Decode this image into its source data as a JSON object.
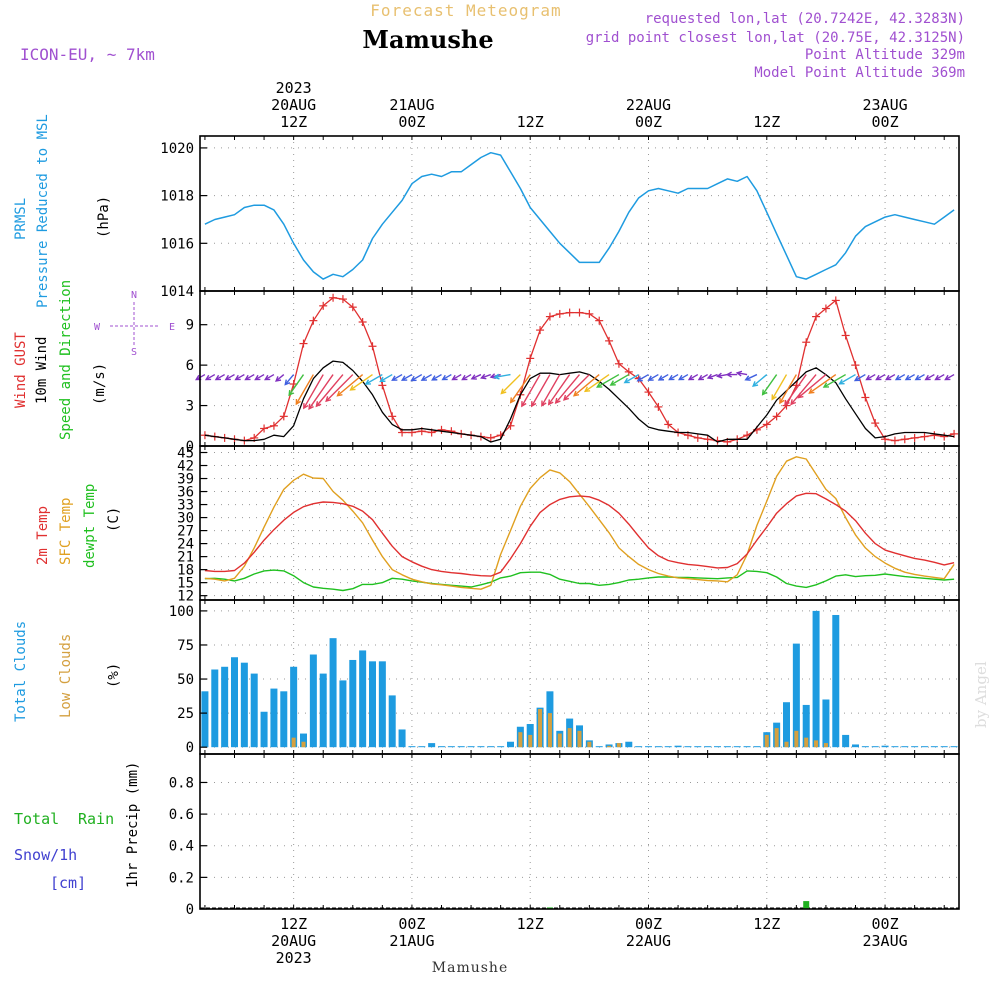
{
  "header": {
    "super_title": "Forecast Meteogram",
    "location": "Mamushe",
    "model": "ICON-EU, ~ 7km",
    "requested": "requested lon,lat (20.7242E, 42.3283N)",
    "gridpoint": "grid point closest lon,lat (20.75E, 42.3125N)",
    "point_alt": "Point Altitude 329m",
    "model_alt": "Model Point Altitude 369m",
    "footer_location": "Mamushe",
    "watermark": "by Angel"
  },
  "time_axis": {
    "start": "2023-08-20T03Z",
    "end": "2023-08-23T06Z",
    "step_hours": 1,
    "top_labels": [
      {
        "t": 9,
        "lines": [
          "2023",
          "20AUG",
          "12Z"
        ]
      },
      {
        "t": 21,
        "lines": [
          "21AUG",
          "00Z"
        ]
      },
      {
        "t": 33,
        "lines": [
          "12Z"
        ]
      },
      {
        "t": 45,
        "lines": [
          "22AUG",
          "00Z"
        ]
      },
      {
        "t": 57,
        "lines": [
          "12Z"
        ]
      },
      {
        "t": 69,
        "lines": [
          "23AUG",
          "00Z"
        ]
      }
    ],
    "bottom_labels": [
      {
        "t": 9,
        "lines": [
          "12Z",
          "20AUG",
          "2023"
        ]
      },
      {
        "t": 21,
        "lines": [
          "00Z",
          "21AUG"
        ]
      },
      {
        "t": 33,
        "lines": [
          "12Z"
        ]
      },
      {
        "t": 45,
        "lines": [
          "00Z",
          "22AUG"
        ]
      },
      {
        "t": 57,
        "lines": [
          "12Z"
        ]
      },
      {
        "t": 69,
        "lines": [
          "00Z",
          "23AUG"
        ]
      }
    ]
  },
  "colors": {
    "pressure": "#1e9be0",
    "gust": "#e03030",
    "wind": "#000000",
    "temp": "#e03030",
    "sfc": "#e0a020",
    "dewpt": "#20c020",
    "total_cloud": "#1e9be0",
    "low_cloud": "#d4a040",
    "rain": "#20b020",
    "snow": "#4040d0",
    "header_purple": "#a050d0",
    "header_orange": "#e8c070",
    "dir_label": "#a050d0"
  },
  "panels": {
    "pressure": {
      "labels": [
        "PRMSL",
        "Pressure Reduced to MSL"
      ],
      "unit": "(hPa)"
    },
    "wind": {
      "labels": [
        "Wind GUST",
        "10m Wind",
        "Speed and Direction"
      ],
      "unit": "(m/s)",
      "dir_marks": [
        "N",
        "S",
        "W",
        "E"
      ]
    },
    "temp": {
      "labels": [
        "2m Temp",
        "SFC Temp",
        "dewpt Temp"
      ],
      "unit": "(C)"
    },
    "cloud": {
      "labels": [
        "Total Clouds",
        "Low Clouds"
      ],
      "unit": "(%)"
    },
    "precip": {
      "labels": [
        "Total",
        "Rain",
        "Snow/1h",
        "[cm]"
      ],
      "unit": "1hr Precip (mm)"
    }
  },
  "chart_data": [
    {
      "type": "line",
      "name": "PRMSL",
      "ylabel": "(hPa)",
      "ylim": [
        1014,
        1020.5
      ],
      "yticks": [
        1014,
        1016,
        1018,
        1020
      ],
      "grid": true,
      "series": [
        {
          "name": "PRMSL",
          "values": [
            1016.8,
            1017.0,
            1017.1,
            1017.2,
            1017.5,
            1017.6,
            1017.6,
            1017.4,
            1016.8,
            1016.0,
            1015.3,
            1014.8,
            1014.5,
            1014.7,
            1014.6,
            1014.9,
            1015.3,
            1016.2,
            1016.8,
            1017.3,
            1017.8,
            1018.5,
            1018.8,
            1018.9,
            1018.8,
            1019.0,
            1019.0,
            1019.3,
            1019.6,
            1019.8,
            1019.7,
            1019.0,
            1018.3,
            1017.5,
            1017.0,
            1016.5,
            1016.0,
            1015.6,
            1015.2,
            1015.2,
            1015.2,
            1015.8,
            1016.5,
            1017.3,
            1017.9,
            1018.2,
            1018.3,
            1018.2,
            1018.1,
            1018.3,
            1018.3,
            1018.3,
            1018.5,
            1018.7,
            1018.6,
            1018.8,
            1018.2,
            1017.3,
            1016.4,
            1015.5,
            1014.6,
            1014.5,
            1014.7,
            1014.9,
            1015.1,
            1015.6,
            1016.3,
            1016.7,
            1016.9,
            1017.1,
            1017.2,
            1017.1,
            1017.0,
            1016.9,
            1016.8,
            1017.1,
            1017.4
          ]
        }
      ]
    },
    {
      "type": "line",
      "name": "Wind",
      "ylabel": "(m/s)",
      "ylim": [
        0,
        11.5
      ],
      "yticks": [
        0,
        3,
        6,
        9
      ],
      "grid": true,
      "series": [
        {
          "name": "Wind GUST",
          "values": [
            0.8,
            0.7,
            0.6,
            0.5,
            0.4,
            0.6,
            1.3,
            1.5,
            2.2,
            4.6,
            7.6,
            9.3,
            10.4,
            11.0,
            10.9,
            10.3,
            9.2,
            7.4,
            4.5,
            2.2,
            1.0,
            1.0,
            1.1,
            1.0,
            1.2,
            1.1,
            0.9,
            0.8,
            0.7,
            0.6,
            0.8,
            1.5,
            3.8,
            6.5,
            8.6,
            9.6,
            9.8,
            9.9,
            9.9,
            9.8,
            9.3,
            7.8,
            6.1,
            5.5,
            5.0,
            4.0,
            2.9,
            1.6,
            1.0,
            0.8,
            0.6,
            0.5,
            0.4,
            0.3,
            0.5,
            0.8,
            1.2,
            1.6,
            2.2,
            3.0,
            4.5,
            7.7,
            9.6,
            10.2,
            10.8,
            8.2,
            6.0,
            3.6,
            1.7,
            0.5,
            0.4,
            0.5,
            0.6,
            0.7,
            0.8,
            0.7,
            0.9
          ]
        },
        {
          "name": "10m Wind",
          "values": [
            0.8,
            0.7,
            0.6,
            0.5,
            0.4,
            0.4,
            0.5,
            0.8,
            0.7,
            1.5,
            3.5,
            5.0,
            5.8,
            6.3,
            6.2,
            5.6,
            4.8,
            3.8,
            2.5,
            1.6,
            1.2,
            1.2,
            1.3,
            1.2,
            1.1,
            1.0,
            0.9,
            0.8,
            0.7,
            0.3,
            0.5,
            2.0,
            3.8,
            5.0,
            5.4,
            5.4,
            5.3,
            5.4,
            5.5,
            5.3,
            4.8,
            4.2,
            3.5,
            2.8,
            2.0,
            1.4,
            1.2,
            1.1,
            1.0,
            1.0,
            0.9,
            0.8,
            0.3,
            0.5,
            0.5,
            0.5,
            1.4,
            2.3,
            3.4,
            4.1,
            4.8,
            5.5,
            5.8,
            5.3,
            4.7,
            3.5,
            2.4,
            1.3,
            0.6,
            0.7,
            0.9,
            1.0,
            1.0,
            1.0,
            0.9,
            0.8,
            0.7
          ]
        },
        {
          "name": "Speed and Direction",
          "dir_to_deg": [
            240,
            240,
            240,
            240,
            240,
            240,
            240,
            240,
            230,
            220,
            215,
            210,
            210,
            215,
            220,
            225,
            230,
            235,
            240,
            240,
            240,
            240,
            240,
            240,
            240,
            240,
            240,
            240,
            245,
            250,
            255,
            260,
            225,
            215,
            210,
            210,
            210,
            215,
            220,
            225,
            230,
            235,
            240,
            240,
            240,
            240,
            240,
            240,
            240,
            240,
            240,
            240,
            250,
            260,
            270,
            280,
            245,
            230,
            215,
            210,
            210,
            215,
            220,
            230,
            235,
            240,
            240,
            240,
            240,
            240,
            240,
            240,
            240,
            240,
            240,
            240,
            240
          ]
        }
      ]
    },
    {
      "type": "line",
      "name": "Temperature",
      "ylabel": "(C)",
      "ylim": [
        11,
        46.5
      ],
      "yticks": [
        12,
        15,
        18,
        21,
        24,
        27,
        30,
        33,
        36,
        39,
        42,
        45
      ],
      "grid": true,
      "series": [
        {
          "name": "2m Temp",
          "values": [
            17.8,
            17.6,
            17.6,
            17.8,
            19.5,
            22.0,
            24.8,
            27.2,
            29.4,
            31.2,
            32.5,
            33.2,
            33.6,
            33.5,
            33.2,
            32.6,
            31.5,
            29.5,
            26.4,
            23.4,
            21.0,
            19.8,
            18.8,
            18.0,
            17.6,
            17.3,
            17.1,
            16.8,
            16.6,
            16.5,
            17.4,
            20.5,
            24.0,
            28.0,
            31.2,
            33.0,
            34.2,
            34.8,
            35.0,
            34.8,
            34.0,
            32.8,
            31.0,
            28.5,
            25.7,
            23.0,
            21.2,
            20.1,
            19.6,
            19.2,
            19.0,
            18.7,
            18.4,
            18.5,
            19.4,
            21.6,
            24.8,
            27.8,
            31.0,
            33.2,
            35.0,
            35.6,
            35.5,
            34.3,
            33.0,
            31.5,
            29.3,
            26.4,
            24.0,
            22.5,
            21.8,
            21.2,
            20.6,
            20.2,
            19.7,
            19.1,
            19.6
          ]
        },
        {
          "name": "SFC Temp",
          "values": [
            16.0,
            15.8,
            15.4,
            16.0,
            18.8,
            23.0,
            27.8,
            32.4,
            36.5,
            38.6,
            40.0,
            39.1,
            39.0,
            36.0,
            34.0,
            31.5,
            28.8,
            24.8,
            21.0,
            18.0,
            16.8,
            15.8,
            15.2,
            14.7,
            14.5,
            14.2,
            13.9,
            13.7,
            13.5,
            14.4,
            21.5,
            27.0,
            32.6,
            36.7,
            39.2,
            41.0,
            40.3,
            38.3,
            35.4,
            32.5,
            29.5,
            26.5,
            23.0,
            21.0,
            19.2,
            18.0,
            17.1,
            16.5,
            16.1,
            15.9,
            15.7,
            15.5,
            15.4,
            15.2,
            16.8,
            21.5,
            28.2,
            33.8,
            39.5,
            43.0,
            44.0,
            43.5,
            40.0,
            36.5,
            34.4,
            30.0,
            26.0,
            23.0,
            21.0,
            19.5,
            18.3,
            17.4,
            16.9,
            16.5,
            16.2,
            15.9,
            19.2
          ]
        },
        {
          "name": "dewpt Temp",
          "values": [
            15.9,
            16.0,
            15.8,
            15.4,
            16.0,
            17.0,
            17.7,
            17.9,
            17.7,
            16.6,
            15.0,
            14.0,
            13.7,
            13.5,
            13.2,
            13.6,
            14.6,
            14.6,
            15.0,
            16.0,
            15.8,
            15.4,
            15.1,
            14.8,
            14.6,
            14.4,
            14.2,
            14.0,
            14.5,
            15.1,
            16.1,
            16.5,
            17.3,
            17.4,
            17.4,
            16.9,
            15.8,
            15.3,
            14.8,
            14.8,
            14.4,
            14.6,
            15.0,
            15.6,
            15.8,
            16.1,
            16.3,
            16.3,
            16.2,
            16.2,
            16.1,
            16.0,
            15.9,
            16.1,
            16.2,
            17.7,
            17.6,
            17.3,
            16.3,
            14.8,
            14.2,
            13.9,
            14.5,
            15.4,
            16.5,
            16.8,
            16.4,
            16.6,
            16.7,
            17.0,
            16.7,
            16.4,
            16.2,
            16.0,
            15.8,
            15.6,
            15.8
          ]
        }
      ]
    },
    {
      "type": "bar",
      "name": "Clouds",
      "ylabel": "(%)",
      "ylim": [
        -5,
        108
      ],
      "yticks": [
        0,
        25,
        50,
        75,
        100
      ],
      "grid": true,
      "series": [
        {
          "name": "Total Clouds",
          "values": [
            41,
            57,
            59,
            66,
            62,
            54,
            26,
            43,
            41,
            59,
            10,
            68,
            54,
            80,
            49,
            64,
            71,
            63,
            63,
            38,
            13,
            0,
            0,
            3,
            0,
            0,
            0,
            0,
            0,
            0,
            0,
            4,
            15,
            17,
            29,
            41,
            12,
            21,
            16,
            5,
            0,
            2,
            3,
            4,
            0,
            0,
            0,
            0,
            1,
            0,
            0,
            0,
            0,
            0,
            0,
            0,
            0,
            11,
            18,
            33,
            76,
            31,
            100,
            35,
            97,
            9,
            2,
            0,
            0,
            1,
            0,
            0,
            0,
            0,
            0,
            0,
            0
          ]
        },
        {
          "name": "Low Clouds",
          "values": [
            0,
            0,
            0,
            0,
            0,
            0,
            0,
            0,
            0,
            7,
            4,
            0,
            0,
            0,
            0,
            0,
            0,
            0,
            0,
            0,
            0,
            0,
            0,
            0,
            0,
            0,
            0,
            0,
            0,
            0,
            0,
            0,
            11,
            9,
            28,
            25,
            10,
            14,
            12,
            4,
            0,
            1,
            3,
            0,
            0,
            0,
            0,
            0,
            0,
            0,
            0,
            0,
            0,
            0,
            0,
            0,
            0,
            9,
            14,
            4,
            12,
            7,
            5,
            3,
            0,
            0,
            0,
            0,
            0,
            0,
            0,
            0,
            0,
            0,
            0,
            0,
            0
          ]
        }
      ]
    },
    {
      "type": "bar",
      "name": "Precipitation",
      "ylabel": "1hr Precip (mm)",
      "ylim": [
        0,
        0.98
      ],
      "yticks": [
        0,
        0.2,
        0.4,
        0.6,
        0.8
      ],
      "grid": true,
      "series": [
        {
          "name": "Total",
          "values": [
            0,
            0,
            0,
            0,
            0,
            0,
            0,
            0,
            0,
            0,
            0,
            0,
            0,
            0,
            0,
            0,
            0,
            0,
            0,
            0,
            0,
            0,
            0,
            0,
            0,
            0,
            0,
            0,
            0,
            0,
            0,
            0,
            0,
            0,
            0,
            0.01,
            0,
            0,
            0,
            0,
            0,
            0,
            0,
            0,
            0,
            0,
            0,
            0,
            0,
            0,
            0,
            0,
            0,
            0,
            0,
            0,
            0,
            0,
            0,
            0,
            0,
            0.05,
            0,
            0,
            0,
            0,
            0,
            0,
            0,
            0,
            0,
            0,
            0,
            0,
            0,
            0,
            0
          ]
        }
      ]
    }
  ]
}
